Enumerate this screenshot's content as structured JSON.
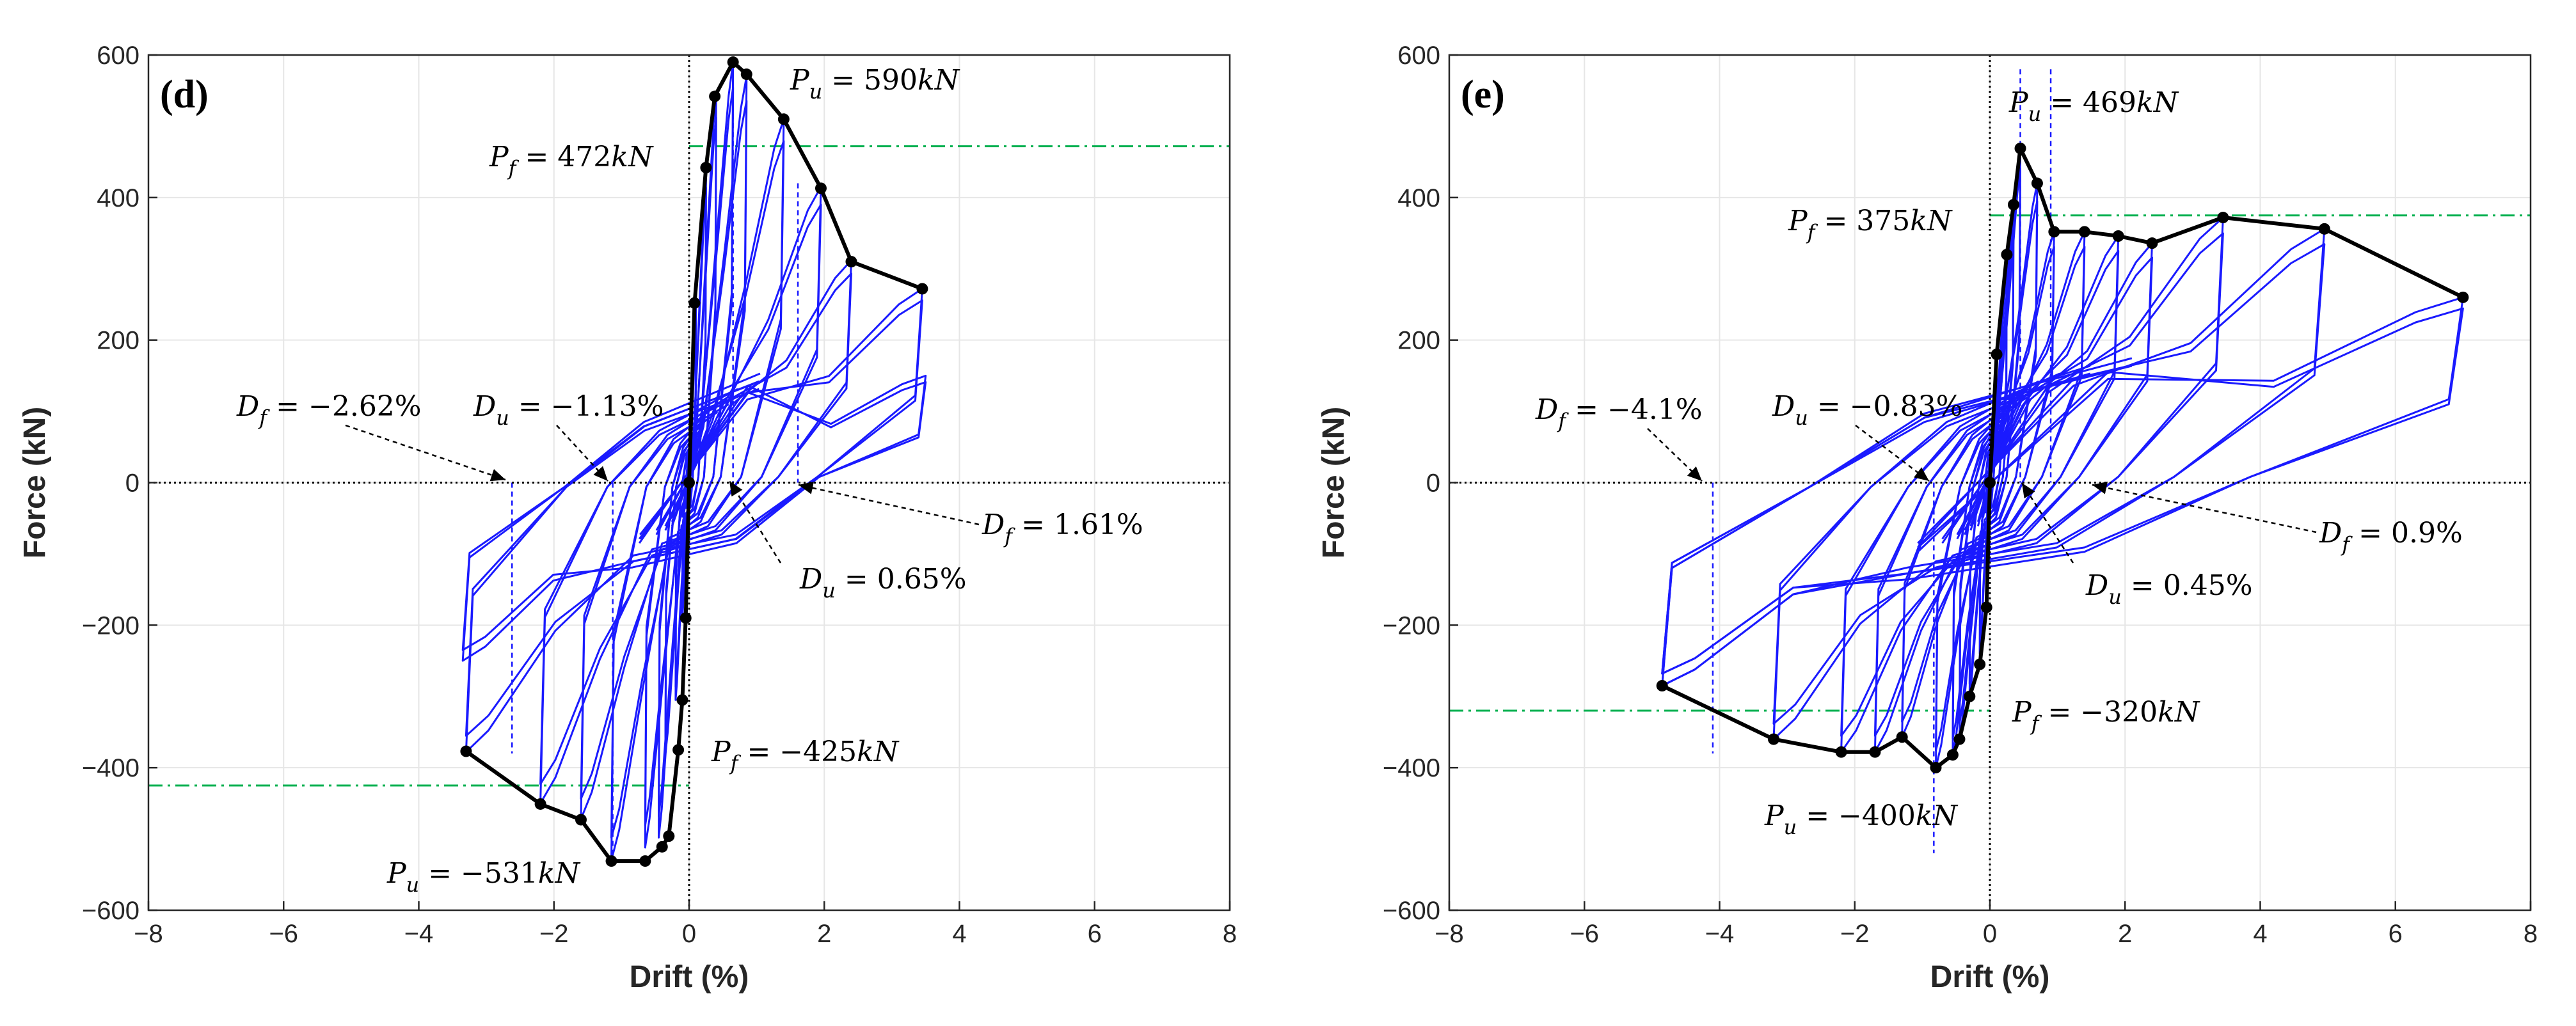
{
  "colors": {
    "hysteresis": "#1a1aff",
    "envelope": "#000000",
    "failure_line": "#00b050",
    "guide_line": "#1a1aff",
    "zero_line": "#000000",
    "grid": "#e6e6e6"
  },
  "chart_data": [
    {
      "type": "line",
      "panel": "(d)",
      "xlabel": "Drift (%)",
      "ylabel": "Force (kN)",
      "xlim": [
        -8,
        8
      ],
      "ylim": [
        -600,
        600
      ],
      "xticks": [
        -8,
        -6,
        -4,
        -2,
        0,
        2,
        4,
        6,
        8
      ],
      "yticks": [
        600,
        400,
        200,
        0,
        -200,
        -400,
        -600
      ],
      "xtick_labels": [
        "−8",
        "−6",
        "−4",
        "−2",
        "0",
        "2",
        "4",
        "6",
        "8"
      ],
      "ytick_labels": [
        "600",
        "400",
        "200",
        "0",
        "−200",
        "−400",
        "−600"
      ],
      "grid": true,
      "envelope": {
        "x": [
          3.45,
          2.4,
          1.95,
          1.4,
          0.85,
          0.65,
          0.38,
          0.25,
          0.08,
          0.0,
          -0.05,
          -0.1,
          -0.16,
          -0.3,
          -0.4,
          -0.65,
          -1.15,
          -1.6,
          -2.2,
          -3.3
        ],
        "y": [
          272,
          310,
          413,
          510,
          573,
          590,
          542,
          442,
          252,
          0,
          -190,
          -305,
          -375,
          -496,
          -511,
          -531,
          -531,
          -473,
          -451,
          -377
        ]
      },
      "hysteresis_peaks": {
        "positive": [
          [
            0.1,
            250
          ],
          [
            0.25,
            440
          ],
          [
            0.4,
            545
          ],
          [
            0.65,
            590
          ],
          [
            0.85,
            570
          ],
          [
            1.4,
            510
          ],
          [
            1.95,
            415
          ],
          [
            2.4,
            312
          ],
          [
            3.45,
            272
          ],
          [
            3.5,
            150
          ]
        ],
        "negative": [
          [
            -0.1,
            -190
          ],
          [
            -0.2,
            -305
          ],
          [
            -0.35,
            -380
          ],
          [
            -0.45,
            -498
          ],
          [
            -0.65,
            -512
          ],
          [
            -1.15,
            -530
          ],
          [
            -1.6,
            -472
          ],
          [
            -2.2,
            -450
          ],
          [
            -3.3,
            -378
          ],
          [
            -3.35,
            -250
          ]
        ]
      },
      "failure_force_lines": [
        472,
        -425
      ],
      "annotations": {
        "pu_pos": {
          "sym": "P",
          "sub": "u",
          "eq": " = 590",
          "unit": "kN"
        },
        "pf_pos": {
          "sym": "P",
          "sub": "f",
          "eq": " = 472",
          "unit": "kN"
        },
        "df_neg": {
          "sym": "D",
          "sub": "f",
          "eq": " = −2.62%"
        },
        "du_neg": {
          "sym": "D",
          "sub": "u",
          "eq": " = −1.13%"
        },
        "df_pos": {
          "sym": "D",
          "sub": "f",
          "eq": " = 1.61%"
        },
        "du_pos": {
          "sym": "D",
          "sub": "u",
          "eq": " = 0.65%"
        },
        "pf_neg": {
          "sym": "P",
          "sub": "f",
          "eq": " = −425",
          "unit": "kN"
        },
        "pu_neg": {
          "sym": "P",
          "sub": "u",
          "eq": " = −531",
          "unit": "kN"
        }
      },
      "guide_drifts": [
        -2.62,
        -1.13,
        0.65,
        1.61
      ]
    },
    {
      "type": "line",
      "panel": "(e)",
      "xlabel": "Drift (%)",
      "ylabel": "Force (kN)",
      "xlim": [
        -8,
        8
      ],
      "ylim": [
        -600,
        600
      ],
      "xticks": [
        -8,
        -6,
        -4,
        -2,
        0,
        2,
        4,
        6,
        8
      ],
      "yticks": [
        600,
        400,
        200,
        0,
        -200,
        -400,
        -600
      ],
      "xtick_labels": [
        "−8",
        "−6",
        "−4",
        "−2",
        "0",
        "2",
        "4",
        "6",
        "8"
      ],
      "ytick_labels": [
        "600",
        "400",
        "200",
        "0",
        "−200",
        "−400",
        "−600"
      ],
      "grid": true,
      "envelope": {
        "x": [
          7.0,
          4.95,
          3.45,
          2.4,
          1.9,
          1.4,
          0.95,
          0.7,
          0.45,
          0.35,
          0.25,
          0.1,
          0.0,
          -0.05,
          -0.15,
          -0.3,
          -0.45,
          -0.55,
          -0.8,
          -1.3,
          -1.7,
          -2.2,
          -3.2,
          -4.85
        ],
        "y": [
          260,
          356,
          372,
          336,
          346,
          352,
          352,
          420,
          469,
          390,
          320,
          180,
          0,
          -175,
          -255,
          -300,
          -360,
          -382,
          -400,
          -357,
          -378,
          -378,
          -360,
          -285
        ]
      },
      "hysteresis_peaks": {
        "positive": [
          [
            0.1,
            180
          ],
          [
            0.25,
            320
          ],
          [
            0.35,
            390
          ],
          [
            0.45,
            469
          ],
          [
            0.7,
            420
          ],
          [
            0.95,
            352
          ],
          [
            1.4,
            352
          ],
          [
            1.9,
            346
          ],
          [
            2.4,
            336
          ],
          [
            3.45,
            372
          ],
          [
            4.95,
            356
          ],
          [
            7.0,
            260
          ]
        ],
        "negative": [
          [
            -0.05,
            -175
          ],
          [
            -0.15,
            -255
          ],
          [
            -0.3,
            -300
          ],
          [
            -0.45,
            -360
          ],
          [
            -0.55,
            -382
          ],
          [
            -0.8,
            -400
          ],
          [
            -1.3,
            -357
          ],
          [
            -1.7,
            -378
          ],
          [
            -2.2,
            -378
          ],
          [
            -3.2,
            -360
          ],
          [
            -4.85,
            -285
          ]
        ]
      },
      "failure_force_lines": [
        375,
        -320
      ],
      "annotations": {
        "pu_pos": {
          "sym": "P",
          "sub": "u",
          "eq": " = 469",
          "unit": "kN"
        },
        "pf_pos": {
          "sym": "P",
          "sub": "f",
          "eq": " = 375",
          "unit": "kN"
        },
        "df_neg": {
          "sym": "D",
          "sub": "f",
          "eq": " = −4.1%"
        },
        "du_neg": {
          "sym": "D",
          "sub": "u",
          "eq": " = −0.83%"
        },
        "df_pos": {
          "sym": "D",
          "sub": "f",
          "eq": " = 0.9%"
        },
        "du_pos": {
          "sym": "D",
          "sub": "u",
          "eq": " = 0.45%"
        },
        "pf_neg": {
          "sym": "P",
          "sub": "f",
          "eq": " = −320",
          "unit": "kN"
        },
        "pu_neg": {
          "sym": "P",
          "sub": "u",
          "eq": " = −400",
          "unit": "kN"
        }
      },
      "guide_drifts": [
        -4.1,
        -0.83,
        0.45,
        0.9
      ]
    }
  ]
}
